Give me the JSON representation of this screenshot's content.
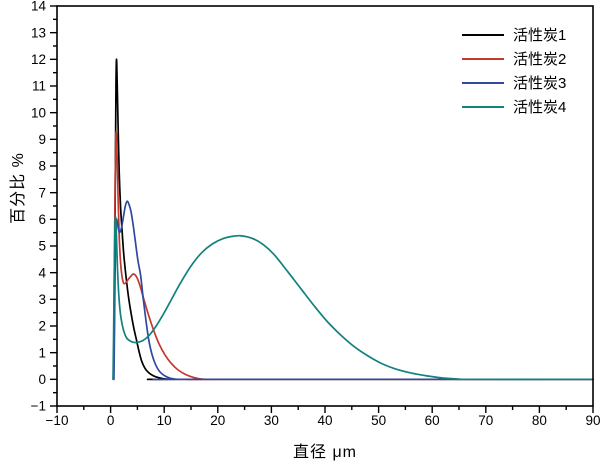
{
  "figure": {
    "background_color": "#ffffff",
    "frame_color": "#000000",
    "tick_color": "#000000"
  },
  "chart_data": {
    "type": "line",
    "title": "",
    "xlabel": "直径 μm",
    "ylabel": "百分比 %",
    "xlim": [
      -10,
      90
    ],
    "ylim": [
      -1,
      14
    ],
    "xticks_major": [
      -10,
      0,
      10,
      20,
      30,
      40,
      50,
      60,
      70,
      80,
      90
    ],
    "xticks_minor": [
      -5,
      5,
      15,
      25,
      35,
      45,
      55,
      65,
      75,
      85
    ],
    "yticks_major": [
      -1,
      0,
      1,
      2,
      3,
      4,
      5,
      6,
      7,
      8,
      9,
      10,
      11,
      12,
      13,
      14
    ],
    "yticks_minor": [
      -0.5,
      0.5,
      1.5,
      2.5,
      3.5,
      4.5,
      5.5,
      6.5,
      7.5,
      8.5,
      9.5,
      10.5,
      11.5,
      12.5,
      13.5
    ],
    "grid": false,
    "legend_position": "top-right inside, no box",
    "series": [
      {
        "name": "活性炭1",
        "color": "#000000",
        "peak_summary": "single narrow peak ~12% at 1.1 µm, zero by ~11 µm",
        "points": [
          [
            0.55,
            0
          ],
          [
            0.65,
            1.2
          ],
          [
            0.78,
            4.5
          ],
          [
            0.9,
            8.2
          ],
          [
            1.0,
            11.0
          ],
          [
            1.1,
            12.0
          ],
          [
            1.22,
            11.2
          ],
          [
            1.4,
            9.5
          ],
          [
            1.6,
            7.8
          ],
          [
            1.85,
            6.5
          ],
          [
            2.1,
            5.7
          ],
          [
            2.45,
            4.7
          ],
          [
            2.85,
            3.9
          ],
          [
            3.3,
            3.15
          ],
          [
            3.8,
            2.5
          ],
          [
            4.3,
            1.95
          ],
          [
            4.8,
            1.5
          ],
          [
            5.3,
            1.05
          ],
          [
            5.8,
            0.68
          ],
          [
            6.4,
            0.42
          ],
          [
            7.1,
            0.25
          ],
          [
            8,
            0.13
          ],
          [
            9,
            0.06
          ],
          [
            10,
            0.02
          ],
          [
            11.5,
            0
          ],
          [
            13,
            0
          ],
          [
            90,
            0
          ]
        ]
      },
      {
        "name": "活性炭2",
        "color": "#c5382e",
        "peak_summary": "narrow peak ~9.25% at 1.1 µm, dip to ~3.6%, second bump ~3.95% at 4.3 µm, zero by ~18 µm",
        "points": [
          [
            0.5,
            0
          ],
          [
            0.6,
            1.5
          ],
          [
            0.72,
            4.5
          ],
          [
            0.85,
            7.5
          ],
          [
            0.97,
            9.0
          ],
          [
            1.07,
            9.25
          ],
          [
            1.2,
            8.5
          ],
          [
            1.4,
            6.8
          ],
          [
            1.6,
            5.4
          ],
          [
            1.85,
            4.4
          ],
          [
            2.1,
            3.9
          ],
          [
            2.4,
            3.62
          ],
          [
            2.75,
            3.6
          ],
          [
            3.2,
            3.72
          ],
          [
            3.7,
            3.85
          ],
          [
            4.3,
            3.95
          ],
          [
            4.9,
            3.82
          ],
          [
            5.5,
            3.5
          ],
          [
            6.2,
            3.0
          ],
          [
            7.1,
            2.4
          ],
          [
            8.1,
            1.8
          ],
          [
            9.1,
            1.3
          ],
          [
            10.2,
            0.9
          ],
          [
            11.3,
            0.6
          ],
          [
            12.6,
            0.35
          ],
          [
            14,
            0.18
          ],
          [
            15.3,
            0.08
          ],
          [
            16.6,
            0.02
          ],
          [
            18,
            0
          ],
          [
            20,
            0
          ],
          [
            90,
            0
          ]
        ]
      },
      {
        "name": "活性炭3",
        "color": "#32479e",
        "peak_summary": "shoulder ~6.0% at 1.1 µm then main peak ~6.7% at 3.1 µm, zero by ~12.5 µm",
        "points": [
          [
            0.62,
            0
          ],
          [
            0.72,
            1.8
          ],
          [
            0.85,
            4.2
          ],
          [
            1.0,
            5.7
          ],
          [
            1.12,
            6.0
          ],
          [
            1.28,
            5.85
          ],
          [
            1.5,
            5.6
          ],
          [
            1.75,
            5.52
          ],
          [
            2.05,
            5.7
          ],
          [
            2.4,
            6.1
          ],
          [
            2.75,
            6.5
          ],
          [
            3.1,
            6.68
          ],
          [
            3.45,
            6.55
          ],
          [
            3.8,
            6.3
          ],
          [
            4.2,
            5.8
          ],
          [
            4.6,
            5.2
          ],
          [
            5.1,
            4.45
          ],
          [
            5.6,
            3.9
          ],
          [
            6.1,
            3.0
          ],
          [
            6.6,
            2.2
          ],
          [
            7.1,
            1.5
          ],
          [
            7.7,
            0.95
          ],
          [
            8.4,
            0.55
          ],
          [
            9.2,
            0.28
          ],
          [
            10.2,
            0.12
          ],
          [
            11.2,
            0.04
          ],
          [
            12.5,
            0
          ],
          [
            14,
            0
          ],
          [
            90,
            0
          ]
        ]
      },
      {
        "name": "活性炭4",
        "color": "#12827f",
        "peak_summary": "narrow spike ~6.05% at 0.95 µm, minimum ~1.4% near 4 µm, broad peak ~5.4% at 24.5 µm, zero by ~66 µm",
        "points": [
          [
            0.45,
            0
          ],
          [
            0.55,
            1.5
          ],
          [
            0.68,
            4.0
          ],
          [
            0.82,
            5.8
          ],
          [
            0.95,
            6.05
          ],
          [
            1.1,
            5.3
          ],
          [
            1.3,
            4.1
          ],
          [
            1.55,
            3.1
          ],
          [
            1.9,
            2.35
          ],
          [
            2.4,
            1.85
          ],
          [
            3.0,
            1.55
          ],
          [
            3.8,
            1.42
          ],
          [
            4.8,
            1.38
          ],
          [
            6.0,
            1.45
          ],
          [
            7.2,
            1.65
          ],
          [
            8.5,
            2.0
          ],
          [
            10,
            2.5
          ],
          [
            11.5,
            3.05
          ],
          [
            13,
            3.6
          ],
          [
            15,
            4.25
          ],
          [
            17,
            4.75
          ],
          [
            19,
            5.08
          ],
          [
            21,
            5.28
          ],
          [
            23,
            5.37
          ],
          [
            24.5,
            5.38
          ],
          [
            26.5,
            5.28
          ],
          [
            28.5,
            5.05
          ],
          [
            30.5,
            4.68
          ],
          [
            33,
            4.05
          ],
          [
            35.5,
            3.4
          ],
          [
            38,
            2.75
          ],
          [
            40.5,
            2.15
          ],
          [
            43,
            1.65
          ],
          [
            45.5,
            1.22
          ],
          [
            48,
            0.88
          ],
          [
            50.5,
            0.6
          ],
          [
            53,
            0.4
          ],
          [
            56,
            0.24
          ],
          [
            59,
            0.13
          ],
          [
            62,
            0.05
          ],
          [
            65,
            0.01
          ],
          [
            67,
            0
          ],
          [
            90,
            0
          ]
        ]
      }
    ]
  }
}
